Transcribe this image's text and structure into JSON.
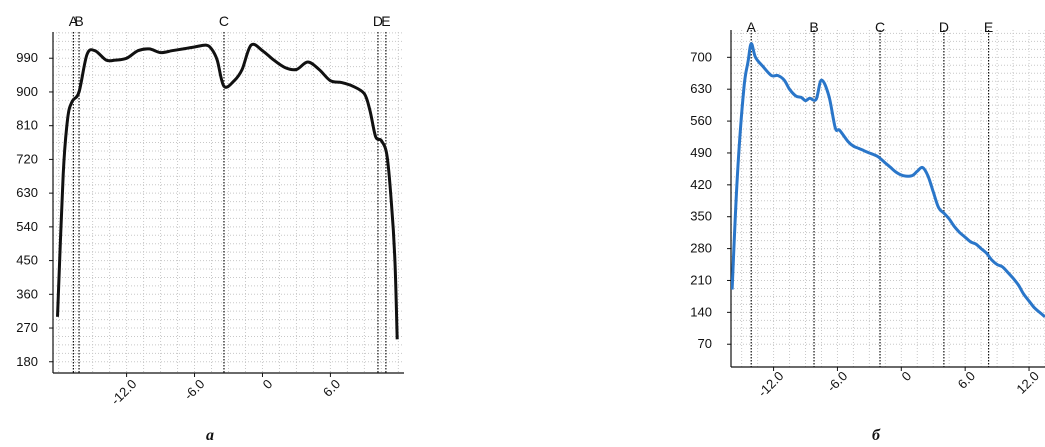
{
  "chart_data": [
    {
      "type": "line",
      "panel_label": "а",
      "xlim": [
        -18.5,
        12.5
      ],
      "ylim": [
        150,
        1060
      ],
      "x_ticks": [
        -12.0,
        -6.0,
        0,
        6.0
      ],
      "x_tick_labels": [
        "-12.0",
        "-6.0",
        "0",
        "6.0"
      ],
      "y_ticks": [
        180,
        270,
        360,
        450,
        540,
        630,
        720,
        810,
        900,
        990
      ],
      "y_tick_labels": [
        "180",
        "270",
        "360",
        "450",
        "540",
        "630",
        "720",
        "810",
        "900",
        "990"
      ],
      "grid": true,
      "markers": [
        {
          "label": "A",
          "x": -16.7
        },
        {
          "label": "B",
          "x": -16.2
        },
        {
          "label": "C",
          "x": -3.4
        },
        {
          "label": "D",
          "x": 10.2
        },
        {
          "label": "E",
          "x": 10.9
        }
      ],
      "series": [
        {
          "color": "#111111",
          "x": [
            -18.1,
            -17.6,
            -17.2,
            -16.8,
            -16.2,
            -15.5,
            -14.8,
            -13.8,
            -13.0,
            -12.0,
            -11.0,
            -10.0,
            -9.0,
            -8.0,
            -7.0,
            -6.0,
            -5.0,
            -4.5,
            -4.0,
            -3.4,
            -2.5,
            -1.8,
            -1.0,
            0.0,
            1.0,
            2.0,
            3.0,
            4.0,
            5.0,
            6.0,
            7.0,
            8.0,
            9.0,
            9.5,
            10.0,
            10.5,
            11.0,
            11.4,
            11.7,
            11.9
          ],
          "y": [
            300,
            680,
            830,
            875,
            900,
            1000,
            1010,
            985,
            985,
            990,
            1010,
            1015,
            1005,
            1010,
            1015,
            1020,
            1025,
            1015,
            985,
            915,
            930,
            960,
            1025,
            1010,
            985,
            965,
            960,
            980,
            960,
            930,
            925,
            915,
            895,
            850,
            780,
            770,
            730,
            600,
            450,
            240
          ]
        }
      ]
    },
    {
      "type": "line",
      "panel_label": "б",
      "xlim": [
        -16.0,
        13.5
      ],
      "ylim": [
        20,
        760
      ],
      "x_ticks": [
        -12.0,
        -6.0,
        0,
        6.0,
        12.0
      ],
      "x_tick_labels": [
        "-12.0",
        "-6.0",
        "0",
        "6.0",
        "12.0"
      ],
      "y_ticks": [
        70,
        140,
        210,
        280,
        350,
        420,
        490,
        560,
        630,
        700
      ],
      "y_tick_labels": [
        "70",
        "140",
        "210",
        "280",
        "350",
        "420",
        "490",
        "560",
        "630",
        "700"
      ],
      "grid": true,
      "markers": [
        {
          "label": "A",
          "x": -14.1
        },
        {
          "label": "B",
          "x": -8.2
        },
        {
          "label": "C",
          "x": -2.0
        },
        {
          "label": "D",
          "x": 4.0
        },
        {
          "label": "E",
          "x": 8.2
        }
      ],
      "series": [
        {
          "color": "#2a76c9",
          "x": [
            -15.9,
            -15.4,
            -14.8,
            -14.4,
            -14.1,
            -13.7,
            -13.0,
            -12.2,
            -11.6,
            -11.0,
            -10.5,
            -9.9,
            -9.4,
            -9.0,
            -8.6,
            -8.0,
            -7.5,
            -6.8,
            -6.2,
            -5.8,
            -5.0,
            -4.5,
            -4.0,
            -3.5,
            -3.0,
            -2.2,
            -1.5,
            -1.0,
            -0.5,
            0.2,
            1.0,
            1.5,
            2.0,
            2.5,
            3.0,
            3.5,
            4.0,
            4.5,
            5.0,
            5.5,
            6.0,
            6.5,
            7.0,
            7.5,
            8.0,
            8.5,
            9.0,
            9.5,
            10.0,
            10.5,
            11.0,
            11.5,
            12.0,
            12.5,
            13.0,
            13.5
          ],
          "y": [
            190,
            440,
            630,
            690,
            730,
            700,
            680,
            660,
            660,
            650,
            630,
            615,
            612,
            605,
            610,
            608,
            650,
            615,
            545,
            540,
            515,
            505,
            500,
            495,
            490,
            482,
            468,
            458,
            448,
            440,
            440,
            450,
            458,
            440,
            405,
            370,
            358,
            345,
            328,
            315,
            305,
            295,
            290,
            280,
            270,
            255,
            245,
            240,
            228,
            215,
            200,
            180,
            165,
            150,
            140,
            130
          ]
        }
      ]
    }
  ]
}
